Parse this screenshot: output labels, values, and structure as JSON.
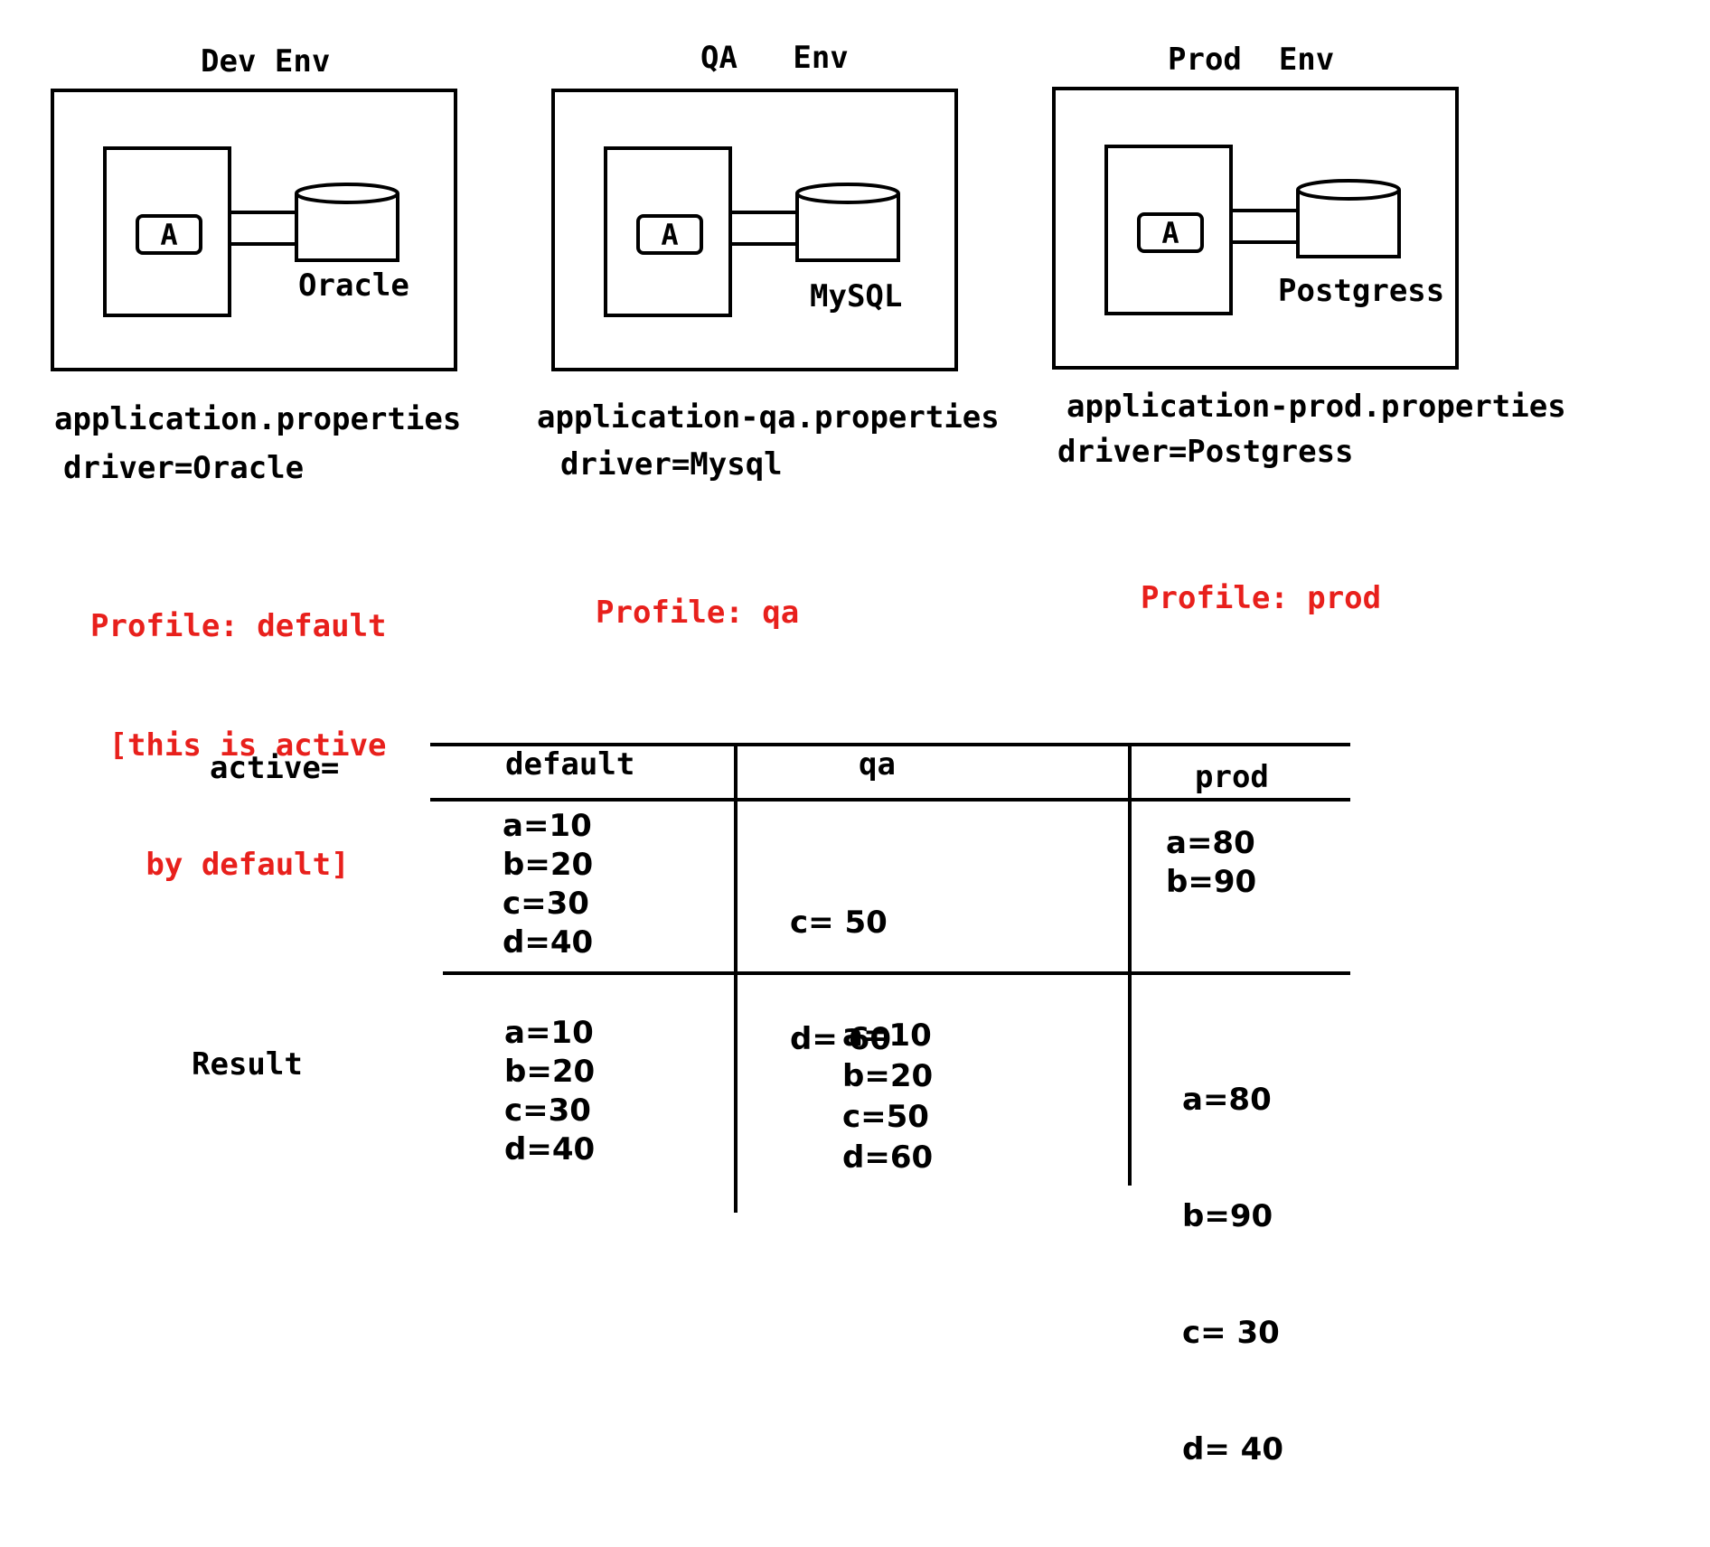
{
  "environments": [
    {
      "title": "Dev  Env",
      "app_label": "A",
      "db_name": "Oracle",
      "properties_file": "application.properties",
      "driver": "driver=Oracle",
      "profile_lines": [
        "Profile: default",
        " [this is active",
        "   by default]"
      ]
    },
    {
      "title": "QA   Env",
      "app_label": "A",
      "db_name": "MySQL",
      "properties_file": "application-qa.properties",
      "driver": "driver=Mysql",
      "profile_lines": [
        "Profile: qa"
      ]
    },
    {
      "title": "Prod  Env",
      "app_label": "A",
      "db_name": "Postgress",
      "properties_file": "application-prod.properties",
      "driver": "driver=Postgress",
      "profile_lines": [
        "Profile: prod"
      ]
    }
  ],
  "table": {
    "row_label_active": "active=",
    "row_label_result": "Result",
    "columns": [
      "default",
      "qa",
      "prod"
    ],
    "active_values": [
      [
        "a=10",
        "b=20",
        "c=30",
        "d=40"
      ],
      [
        "c= 50",
        "d= 60"
      ],
      [
        "a=80",
        "b=90"
      ]
    ],
    "result_values": [
      [
        "a=10",
        "b=20",
        "c=30",
        "d=40"
      ],
      [
        "a=10",
        "b=20",
        "c=50",
        "d=60"
      ],
      [
        "a=80",
        "b=90",
        "c= 30",
        "d= 40"
      ]
    ]
  },
  "colors": {
    "profile_text": "#e8201c",
    "lines": "#000000"
  }
}
